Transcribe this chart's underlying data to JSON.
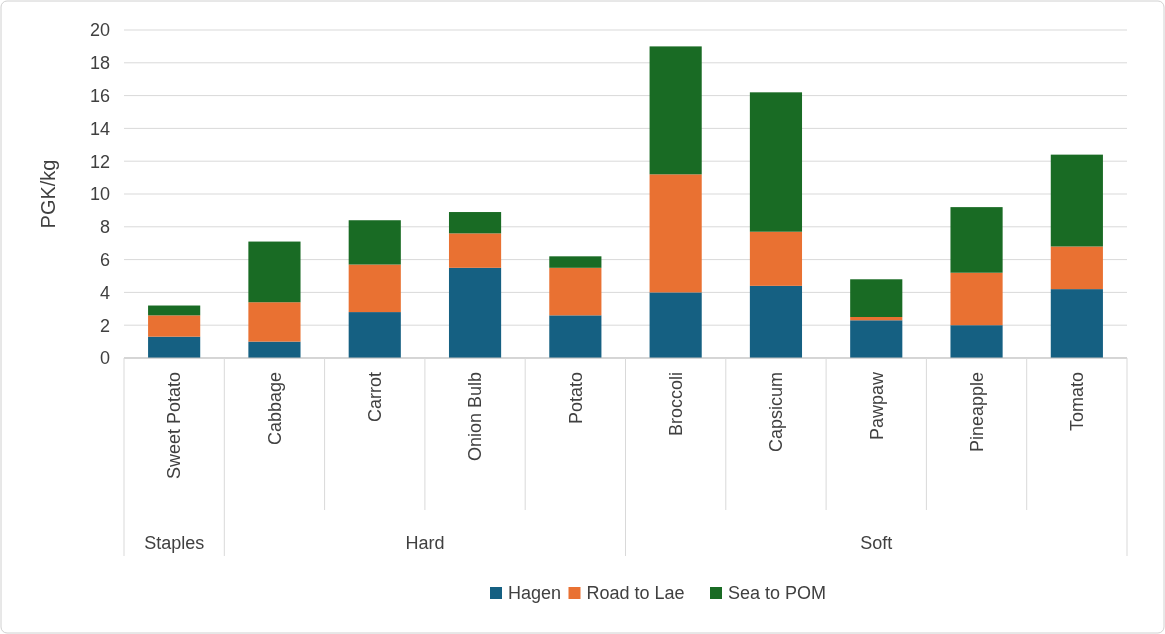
{
  "chart_data": {
    "type": "bar",
    "ylabel": "PGK/kg",
    "stacked": true,
    "categories": [
      "Sweet Potato",
      "Cabbage",
      "Carrot",
      "Onion Bulb",
      "Potato",
      "Broccoli",
      "Capsicum",
      "Pawpaw",
      "Pineapple",
      "Tomato"
    ],
    "series": [
      {
        "name": "Hagen",
        "color": "#156082",
        "values": [
          1.3,
          1.0,
          2.8,
          5.5,
          2.6,
          4.0,
          4.4,
          2.3,
          2.0,
          4.2
        ]
      },
      {
        "name": "Road to Lae",
        "color": "#e97132",
        "values": [
          1.3,
          2.4,
          2.9,
          2.1,
          2.9,
          7.2,
          3.3,
          0.2,
          3.2,
          2.6
        ]
      },
      {
        "name": "Sea to POM",
        "color": "#196b24",
        "values": [
          0.6,
          3.7,
          2.7,
          1.3,
          0.7,
          7.8,
          8.5,
          2.3,
          4.0,
          5.6
        ]
      }
    ],
    "annotations": [
      "Staples",
      "Hard",
      "Soft"
    ],
    "ylim": [
      0,
      20
    ],
    "yticks": [
      0,
      2,
      4,
      6,
      8,
      10,
      12,
      14,
      16,
      18,
      20
    ],
    "grid": "y",
    "legend": "bottom"
  }
}
